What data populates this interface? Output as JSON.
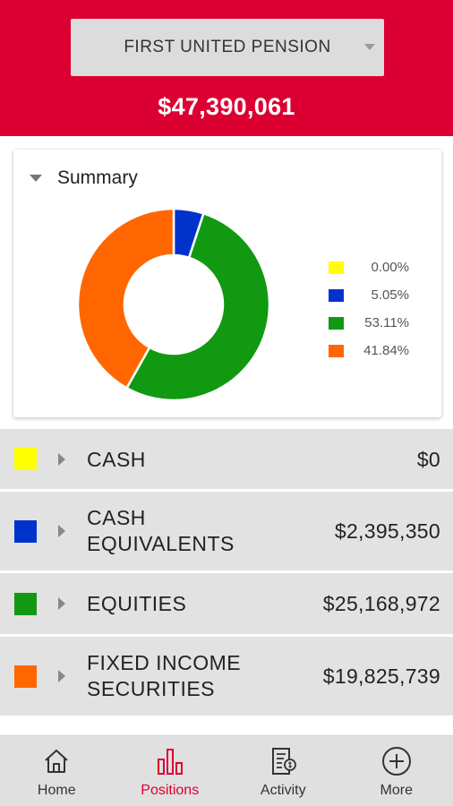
{
  "header": {
    "account_name": "FIRST UNITED PENSION",
    "total_value": "$47,390,061"
  },
  "summary": {
    "title": "Summary",
    "legend": [
      {
        "color": "#ffff00",
        "value": "0.00%"
      },
      {
        "color": "#0033cc",
        "value": "5.05%"
      },
      {
        "color": "#119911",
        "value": "53.11%"
      },
      {
        "color": "#ff6600",
        "value": "41.84%"
      }
    ]
  },
  "chart_data": {
    "type": "pie",
    "categories": [
      "CASH",
      "CASH EQUIVALENTS",
      "EQUITIES",
      "FIXED INCOME SECURITIES"
    ],
    "values": [
      0.0,
      5.05,
      53.11,
      41.84
    ],
    "colors": [
      "#ffff00",
      "#0033cc",
      "#119911",
      "#ff6600"
    ],
    "donut": true
  },
  "categories": [
    {
      "name": "CASH",
      "value": "$0",
      "color": "#ffff00"
    },
    {
      "name": "CASH\nEQUIVALENTS",
      "value": "$2,395,350",
      "color": "#0033cc"
    },
    {
      "name": "EQUITIES",
      "value": "$25,168,972",
      "color": "#119911"
    },
    {
      "name": "FIXED INCOME\nSECURITIES",
      "value": "$19,825,739",
      "color": "#ff6600"
    }
  ],
  "nav": {
    "items": [
      {
        "label": "Home",
        "icon": "home-icon",
        "active": false
      },
      {
        "label": "Positions",
        "icon": "bar-chart-icon",
        "active": true
      },
      {
        "label": "Activity",
        "icon": "statement-icon",
        "active": false
      },
      {
        "label": "More",
        "icon": "plus-circle-icon",
        "active": false
      }
    ],
    "accent_color": "#dc0032"
  }
}
